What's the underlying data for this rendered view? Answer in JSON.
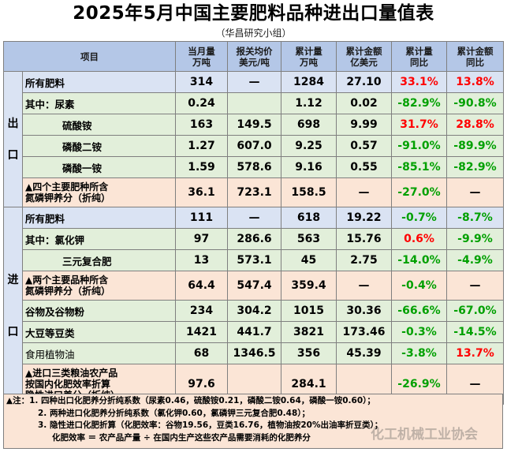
{
  "title": "2025年5月中国主要肥料品种进出口量值表",
  "subtitle": "（华昌研究小组）",
  "headers": {
    "item": "项目",
    "cur_qty": [
      "当月量",
      "万吨"
    ],
    "price": [
      "报关均价",
      "美元/吨"
    ],
    "cum_qty": [
      "累计量",
      "万吨"
    ],
    "cum_amt": [
      "累计金额",
      "亿美元"
    ],
    "qty_yoy": [
      "累计量",
      "同比"
    ],
    "amt_yoy": [
      "累计金额",
      "同比"
    ]
  },
  "export_label": [
    "出",
    "口"
  ],
  "import_label": [
    "进",
    "口"
  ],
  "export": [
    {
      "name": "所有肥料",
      "cur": "314",
      "price": "—",
      "cum": "1284",
      "amt": "27.10",
      "qyoy": "33.1%",
      "ayoy": "13.8%"
    },
    {
      "name": "其中：尿素",
      "cur": "0.24",
      "price": "",
      "cum": "1.12",
      "amt": "0.02",
      "qyoy": "-82.9%",
      "ayoy": "-90.8%"
    },
    {
      "name": "硫酸铵",
      "cur": "163",
      "price": "149.5",
      "cum": "698",
      "amt": "9.99",
      "qyoy": "31.7%",
      "ayoy": "28.8%"
    },
    {
      "name": "磷酸二铵",
      "cur": "1.27",
      "price": "607.0",
      "cum": "9.25",
      "amt": "0.57",
      "qyoy": "-91.0%",
      "ayoy": "-89.9%"
    },
    {
      "name": "磷酸一铵",
      "cur": "1.59",
      "price": "578.6",
      "cum": "9.16",
      "amt": "0.55",
      "qyoy": "-85.1%",
      "ayoy": "-82.9%"
    },
    {
      "name": [
        "▲四个主要肥种所含",
        "氮磷钾养分（折纯）"
      ],
      "cur": "36.1",
      "price": "723.1",
      "cum": "158.5",
      "amt": "—",
      "qyoy": "-27.0%",
      "ayoy": "—"
    }
  ],
  "import": [
    {
      "name": "所有肥料",
      "cur": "111",
      "price": "—",
      "cum": "618",
      "amt": "19.22",
      "qyoy": "-0.7%",
      "ayoy": "-8.7%"
    },
    {
      "name": "其中：氯化钾",
      "cur": "97",
      "price": "286.6",
      "cum": "563",
      "amt": "15.76",
      "qyoy": "0.6%",
      "ayoy": "-9.9%"
    },
    {
      "name": "三元复合肥",
      "cur": "13",
      "price": "573.1",
      "cum": "45",
      "amt": "2.75",
      "qyoy": "-14.0%",
      "ayoy": "-4.9%"
    },
    {
      "name": [
        "▲两个主要品种所含",
        "氮磷钾养分（折纯）"
      ],
      "cur": "64.4",
      "price": "547.4",
      "cum": "359.4",
      "amt": "—",
      "qyoy": "-0.4%",
      "ayoy": "—"
    },
    {
      "name": "谷物及谷物粉",
      "cur": "234",
      "price": "304.2",
      "cum": "1015",
      "amt": "30.36",
      "qyoy": "-66.6%",
      "ayoy": "-67.0%"
    },
    {
      "name": "大豆等豆类",
      "cur": "1421",
      "price": "441.7",
      "cum": "3821",
      "amt": "173.46",
      "qyoy": "-0.3%",
      "ayoy": "-14.5%"
    },
    {
      "name": "食用植物油",
      "cur": "68",
      "price": "1346.5",
      "cum": "356",
      "amt": "45.39",
      "qyoy": "-3.8%",
      "ayoy": "13.7%"
    },
    {
      "name": [
        "▲进口三类粮油农产品",
        "按国内化肥效率折算",
        "隐性进口养分（折纯）"
      ],
      "cur": "97.6",
      "price": "",
      "cum": "284.1",
      "amt": "",
      "qyoy": "-26.9%",
      "ayoy": "—"
    }
  ],
  "notes": [
    "▲注：1. 四种出口化肥养分折纯系数（尿素0.46，硫酸铵0.21，磷酸二铵0.64，磷酸一铵0.60）；",
    "2. 两种进口化肥养分折纯系数（氯化钾0.60，氯磷钾三元复合肥0.48）；",
    "3. 隐性进口化肥折算（化肥效率：谷物19.56，豆类16.76，植物油按20%出油率折豆类）；",
    "化肥效率 ＝ 农产品产量 ÷ 在国内生产这些农产品需要消耗的化肥养分"
  ],
  "watermark": "化工机械工业协会",
  "colors": {
    "header": "#b4c7e7",
    "blue": "#dae3f3",
    "green": "#e2efda",
    "orange": "#fbe5d6",
    "positive": "#ff0000",
    "negative": "#00a000"
  }
}
